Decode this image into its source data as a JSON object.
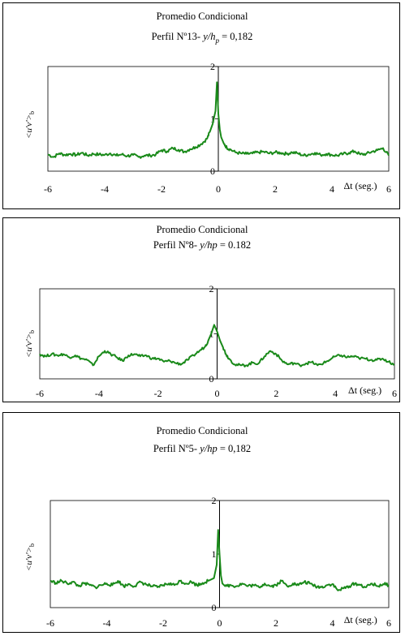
{
  "chart_data": [
    {
      "type": "line",
      "title": "Promedio Condicional",
      "subtitle": {
        "prefix": "Perfil Nº13- ",
        "var": "y/h",
        "sub": "p",
        "suffix": " = 0,182"
      },
      "xlabel": "Δt (seg.)",
      "ylabel": {
        "main": "<u'v'>",
        "sub": "b"
      },
      "xlim": [
        -6,
        6
      ],
      "ylim": [
        0,
        2
      ],
      "x_ticks": [
        "-6",
        "-4",
        "-2",
        "0",
        "2",
        "4",
        "6"
      ],
      "y_ticks": [
        "0",
        "1",
        "2"
      ],
      "color": "#1a8a1a",
      "series": [
        {
          "x": [
            -6,
            -5.8,
            -5.6,
            -5.4,
            -5.2,
            -5,
            -4.8,
            -4.6,
            -4.4,
            -4.2,
            -4,
            -3.8,
            -3.6,
            -3.4,
            -3.2,
            -3,
            -2.8,
            -2.6,
            -2.4,
            -2.2,
            -2,
            -1.8,
            -1.6,
            -1.4,
            -1.2,
            -1,
            -0.8,
            -0.6,
            -0.4,
            -0.3,
            -0.2,
            -0.1,
            -0.05,
            0,
            0.05,
            0.1,
            0.2,
            0.3,
            0.4,
            0.6,
            0.8,
            1,
            1.2,
            1.4,
            1.6,
            1.8,
            2,
            2.2,
            2.4,
            2.6,
            2.8,
            3,
            3.2,
            3.4,
            3.6,
            3.8,
            4,
            4.2,
            4.4,
            4.6,
            4.8,
            5,
            5.2,
            5.4,
            5.6,
            5.8,
            6
          ],
          "y": [
            0.32,
            0.27,
            0.34,
            0.31,
            0.33,
            0.31,
            0.35,
            0.3,
            0.33,
            0.32,
            0.31,
            0.34,
            0.3,
            0.32,
            0.29,
            0.31,
            0.27,
            0.3,
            0.3,
            0.32,
            0.4,
            0.38,
            0.44,
            0.41,
            0.37,
            0.42,
            0.46,
            0.52,
            0.62,
            0.75,
            0.9,
            1.15,
            1.7,
            1.1,
            0.8,
            0.65,
            0.52,
            0.45,
            0.42,
            0.36,
            0.34,
            0.33,
            0.34,
            0.36,
            0.37,
            0.34,
            0.36,
            0.35,
            0.33,
            0.36,
            0.34,
            0.3,
            0.32,
            0.35,
            0.31,
            0.33,
            0.31,
            0.3,
            0.33,
            0.35,
            0.38,
            0.32,
            0.33,
            0.37,
            0.4,
            0.44,
            0.3
          ]
        }
      ]
    },
    {
      "type": "line",
      "title": "Promedio Condicional",
      "subtitle": {
        "prefix": "Perfil Nº8- ",
        "var": "y/hp",
        "sub": "",
        "suffix": " = 0.182"
      },
      "xlabel": "Δt (seg.)",
      "ylabel": {
        "main": "<u'v'>",
        "sub": "b"
      },
      "xlim": [
        -6,
        6
      ],
      "ylim": [
        0,
        2
      ],
      "x_ticks": [
        "-6",
        "-4",
        "-2",
        "0",
        "2",
        "4",
        "6"
      ],
      "y_ticks": [
        "0",
        "1",
        "2"
      ],
      "color": "#1a8a1a",
      "series": [
        {
          "x": [
            -6,
            -5.8,
            -5.6,
            -5.4,
            -5.2,
            -5,
            -4.8,
            -4.6,
            -4.4,
            -4.2,
            -4,
            -3.8,
            -3.6,
            -3.4,
            -3.2,
            -3,
            -2.8,
            -2.6,
            -2.4,
            -2.2,
            -2,
            -1.8,
            -1.6,
            -1.4,
            -1.2,
            -1,
            -0.8,
            -0.6,
            -0.4,
            -0.3,
            -0.2,
            -0.1,
            0,
            0.1,
            0.2,
            0.3,
            0.4,
            0.6,
            0.8,
            1,
            1.2,
            1.4,
            1.6,
            1.8,
            2,
            2.2,
            2.4,
            2.6,
            2.8,
            3,
            3.2,
            3.4,
            3.6,
            3.8,
            4,
            4.2,
            4.4,
            4.6,
            4.8,
            5,
            5.2,
            5.4,
            5.6,
            5.8,
            6
          ],
          "y": [
            0.55,
            0.5,
            0.55,
            0.52,
            0.55,
            0.48,
            0.52,
            0.45,
            0.42,
            0.3,
            0.5,
            0.62,
            0.55,
            0.48,
            0.4,
            0.52,
            0.55,
            0.5,
            0.52,
            0.45,
            0.45,
            0.38,
            0.4,
            0.35,
            0.33,
            0.42,
            0.52,
            0.62,
            0.72,
            0.85,
            1.0,
            1.2,
            1.05,
            0.85,
            0.7,
            0.55,
            0.45,
            0.32,
            0.3,
            0.3,
            0.36,
            0.34,
            0.5,
            0.62,
            0.55,
            0.4,
            0.32,
            0.35,
            0.3,
            0.34,
            0.37,
            0.3,
            0.35,
            0.42,
            0.5,
            0.52,
            0.48,
            0.5,
            0.46,
            0.45,
            0.42,
            0.42,
            0.45,
            0.38,
            0.32
          ]
        }
      ]
    },
    {
      "type": "line",
      "title": "Promedio Condicional",
      "subtitle": {
        "prefix": "Perfil Nº5- ",
        "var": "y/hp",
        "sub": "",
        "suffix": " = 0,182"
      },
      "xlabel": "Δt (seg.)",
      "ylabel": {
        "main": "<u'v'>",
        "sub": "b"
      },
      "xlim": [
        -6,
        6
      ],
      "ylim": [
        0,
        2
      ],
      "x_ticks": [
        "-6",
        "-4",
        "-2",
        "0",
        "2",
        "4",
        "6"
      ],
      "y_ticks": [
        "0",
        "1",
        "2"
      ],
      "color": "#1a8a1a",
      "series": [
        {
          "x": [
            -6,
            -5.8,
            -5.6,
            -5.4,
            -5.2,
            -5,
            -4.8,
            -4.6,
            -4.4,
            -4.2,
            -4,
            -3.8,
            -3.6,
            -3.4,
            -3.2,
            -3,
            -2.8,
            -2.6,
            -2.4,
            -2.2,
            -2,
            -1.8,
            -1.6,
            -1.4,
            -1.2,
            -1,
            -0.8,
            -0.6,
            -0.4,
            -0.2,
            -0.1,
            -0.05,
            0,
            0.05,
            0.1,
            0.2,
            0.4,
            0.6,
            0.8,
            1,
            1.2,
            1.4,
            1.6,
            1.8,
            2,
            2.2,
            2.4,
            2.6,
            2.8,
            3,
            3.2,
            3.4,
            3.6,
            3.8,
            4,
            4.2,
            4.4,
            4.6,
            4.8,
            5,
            5.2,
            5.4,
            5.6,
            5.8,
            6
          ],
          "y": [
            0.5,
            0.46,
            0.5,
            0.45,
            0.48,
            0.4,
            0.45,
            0.42,
            0.38,
            0.42,
            0.45,
            0.42,
            0.5,
            0.4,
            0.44,
            0.4,
            0.48,
            0.43,
            0.4,
            0.38,
            0.42,
            0.45,
            0.42,
            0.5,
            0.45,
            0.48,
            0.42,
            0.46,
            0.5,
            0.55,
            0.8,
            1.45,
            1.0,
            0.6,
            0.45,
            0.4,
            0.42,
            0.4,
            0.45,
            0.4,
            0.42,
            0.38,
            0.45,
            0.4,
            0.42,
            0.5,
            0.4,
            0.45,
            0.42,
            0.48,
            0.45,
            0.4,
            0.38,
            0.42,
            0.44,
            0.32,
            0.36,
            0.4,
            0.45,
            0.42,
            0.38,
            0.45,
            0.4,
            0.44,
            0.42
          ]
        }
      ]
    }
  ]
}
